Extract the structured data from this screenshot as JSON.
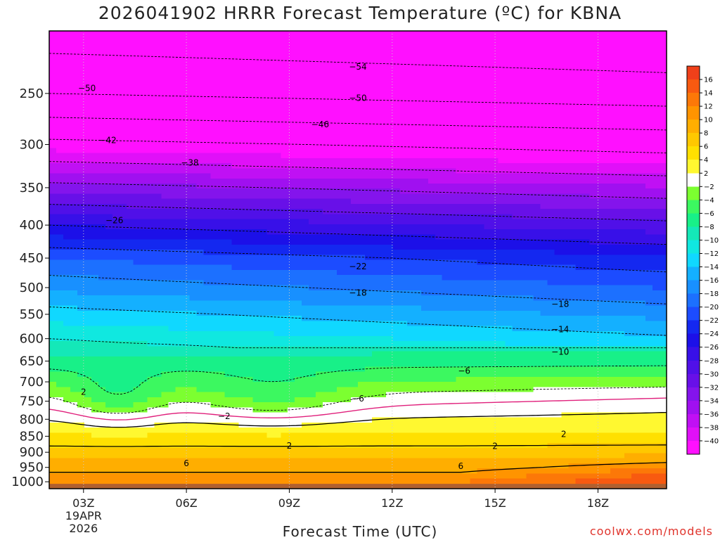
{
  "title": "2026041902 HRRR Forecast Temperature (ºC) for KBNA",
  "xlabel": "Forecast Time (UTC)",
  "credit": "coolwx.com/models",
  "chart_data": {
    "type": "heatmap",
    "title": "2026041902 HRRR Forecast Temperature (ºC) for KBNA",
    "xlabel": "Forecast Time (UTC)",
    "ylabel": "",
    "x_ticks": [
      "03Z",
      "06Z",
      "09Z",
      "12Z",
      "15Z",
      "18Z"
    ],
    "x_tick_hours": [
      3,
      6,
      9,
      12,
      15,
      18
    ],
    "date_label": [
      "19APR",
      "2026"
    ],
    "xlim_hours": [
      2,
      20
    ],
    "y_ticks": [
      250,
      300,
      350,
      400,
      450,
      500,
      550,
      600,
      650,
      700,
      750,
      800,
      850,
      900,
      950,
      1000
    ],
    "ylim_hPa": [
      200,
      1025
    ],
    "y_scale": "log",
    "colorbar": {
      "labels": [
        16,
        14,
        12,
        10,
        8,
        6,
        4,
        2,
        -2,
        -4,
        -6,
        -8,
        -10,
        -12,
        -14,
        -16,
        -18,
        -20,
        -22,
        -24,
        -26,
        -28,
        -30,
        -32,
        -34,
        -36,
        -38,
        -40
      ],
      "colors": [
        "#f0401a",
        "#f85a10",
        "#fc7808",
        "#ff9400",
        "#ffae00",
        "#ffc800",
        "#ffe000",
        "#fff830",
        "#ffffff",
        "#7cff30",
        "#3cf860",
        "#18f088",
        "#14e8b8",
        "#10e8e0",
        "#10d8ff",
        "#14b0ff",
        "#1890ff",
        "#1c70ff",
        "#1c4cff",
        "#1428f0",
        "#1c10e8",
        "#3810e8",
        "#5010e8",
        "#6810e8",
        "#8414ec",
        "#a010f0",
        "#c010f4",
        "#e010f8",
        "#ff10ff"
      ]
    },
    "ground_color": "#b06030",
    "contour_labels": [
      {
        "value": -54,
        "time": 11.0,
        "p": 227
      },
      {
        "value": -50,
        "time": 3.1,
        "p": 245
      },
      {
        "value": -50,
        "time": 11.0,
        "p": 254
      },
      {
        "value": -46,
        "time": 9.9,
        "p": 279
      },
      {
        "value": -42,
        "time": 3.7,
        "p": 295
      },
      {
        "value": -38,
        "time": 6.1,
        "p": 320
      },
      {
        "value": -26,
        "time": 3.9,
        "p": 393
      },
      {
        "value": -22,
        "time": 11.0,
        "p": 463
      },
      {
        "value": -18,
        "time": 11.0,
        "p": 509
      },
      {
        "value": -18,
        "time": 16.9,
        "p": 530
      },
      {
        "value": -14,
        "time": 16.9,
        "p": 580
      },
      {
        "value": -10,
        "time": 16.9,
        "p": 628
      },
      {
        "value": -6,
        "time": 14.1,
        "p": 672
      },
      {
        "value": -6,
        "time": 11.0,
        "p": 742
      },
      {
        "value": -2,
        "time": 7.1,
        "p": 790
      },
      {
        "value": 2,
        "time": 3.0,
        "p": 725
      },
      {
        "value": 2,
        "time": 9.0,
        "p": 878
      },
      {
        "value": 2,
        "time": 15.0,
        "p": 880
      },
      {
        "value": 2,
        "time": 17.0,
        "p": 843
      },
      {
        "value": 6,
        "time": 6.0,
        "p": 935
      },
      {
        "value": 6,
        "time": 14.0,
        "p": 945
      }
    ]
  }
}
